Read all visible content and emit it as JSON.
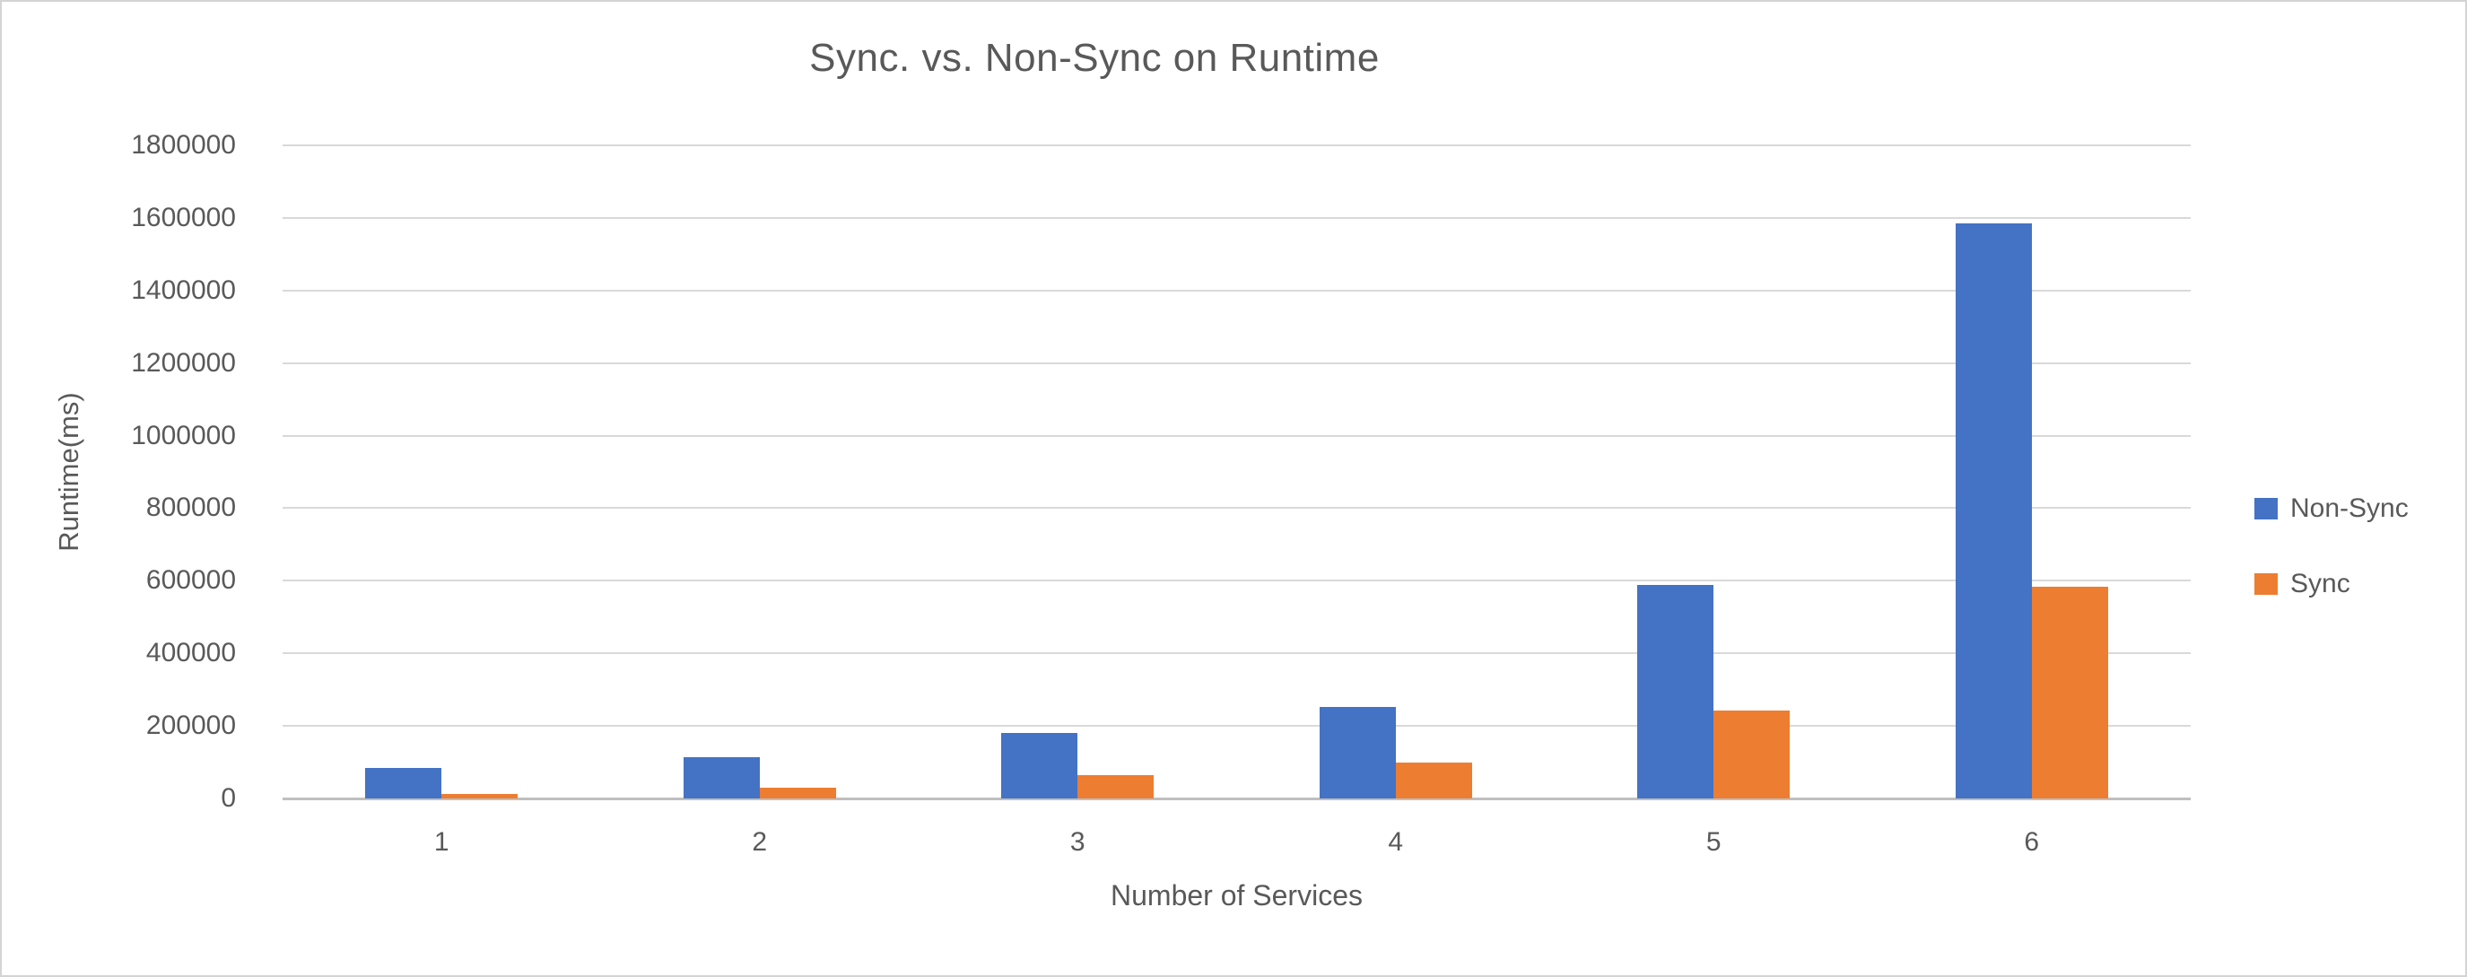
{
  "chart_data": {
    "type": "bar",
    "title": "Sync. vs. Non-Sync on Runtime",
    "xlabel": "Number of Services",
    "ylabel": "Runtime(ms)",
    "categories": [
      "1",
      "2",
      "3",
      "4",
      "5",
      "6"
    ],
    "series": [
      {
        "name": "Non-Sync",
        "color": "#4472C4",
        "values": [
          85000,
          114000,
          181000,
          251000,
          588000,
          1585000
        ]
      },
      {
        "name": "Sync",
        "color": "#ED7D31",
        "values": [
          13000,
          30000,
          65000,
          100000,
          242000,
          584000
        ]
      }
    ],
    "ylim": [
      0,
      1800000
    ],
    "ytick_step": 200000,
    "ytick_labels": [
      "0",
      "200000",
      "400000",
      "600000",
      "800000",
      "1000000",
      "1200000",
      "1400000",
      "1600000",
      "1800000"
    ],
    "grid": true,
    "legend_position": "right"
  },
  "colors": {
    "gridline": "#D9D9D9",
    "axis_line": "#BFBFBF",
    "text": "#595959",
    "frame_border": "#D4D4D4",
    "background": "#FFFFFF"
  }
}
